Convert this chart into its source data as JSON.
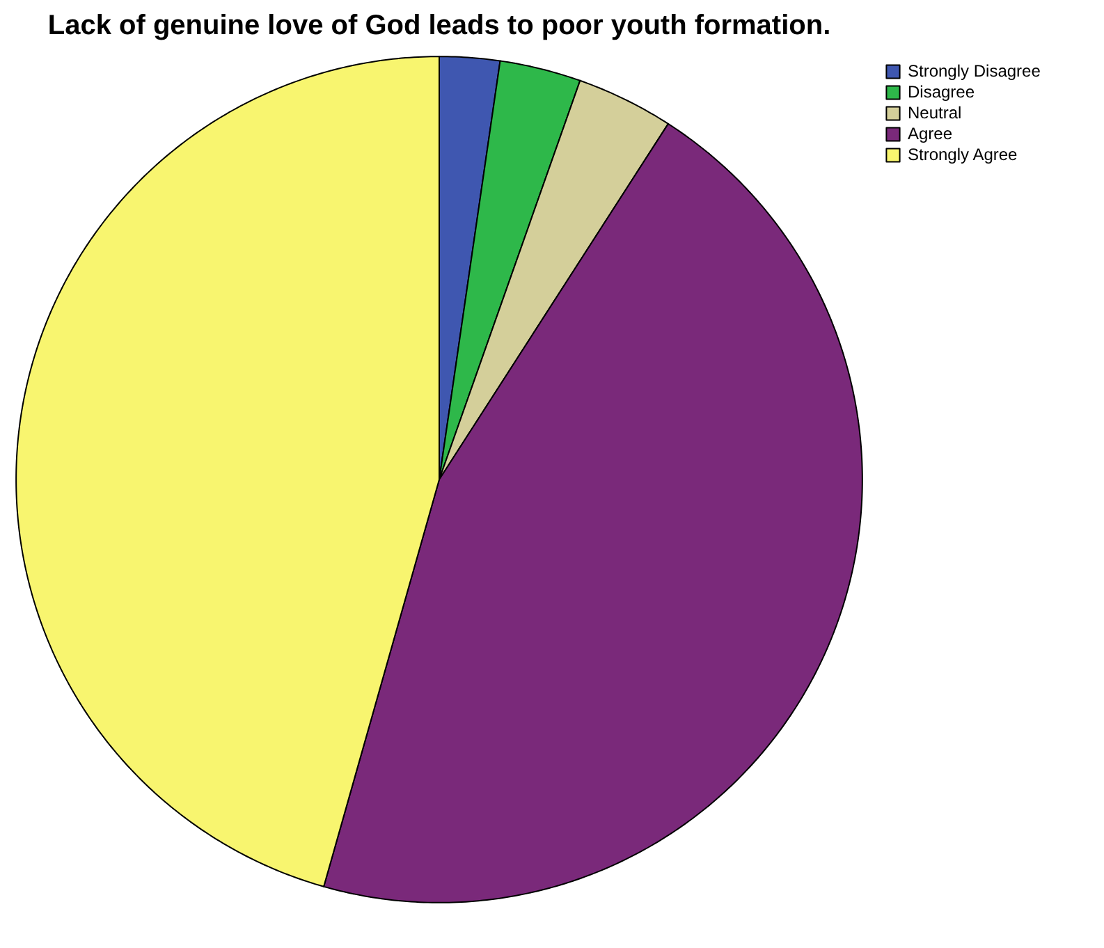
{
  "chart_data": {
    "type": "pie",
    "title": "Lack of genuine love of God leads to poor youth formation.",
    "categories": [
      "Strongly Disagree",
      "Disagree",
      "Neutral",
      "Agree",
      "Strongly Agree"
    ],
    "values": [
      2.3,
      3.1,
      3.7,
      45.3,
      45.6
    ],
    "colors": [
      "#3f57b0",
      "#2eb84a",
      "#d4cf9a",
      "#7a297a",
      "#f8f56f"
    ],
    "legend": "top right"
  }
}
